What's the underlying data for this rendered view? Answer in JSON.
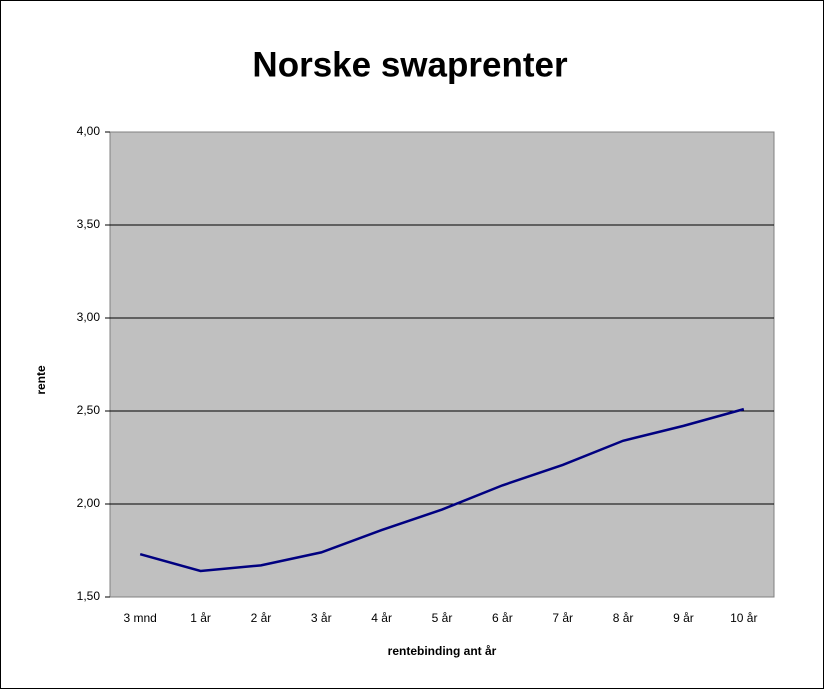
{
  "chart_data": {
    "type": "line",
    "title": "Norske swaprenter",
    "x_label": "rentebinding ant år",
    "y_label": "rente",
    "categories": [
      "3 mnd",
      "1 år",
      "2 år",
      "3 år",
      "4 år",
      "5 år",
      "6 år",
      "7 år",
      "8 år",
      "9 år",
      "10 år"
    ],
    "values": [
      1.73,
      1.64,
      1.67,
      1.74,
      1.86,
      1.97,
      2.1,
      2.21,
      2.34,
      2.42,
      2.51
    ],
    "color": "#000080",
    "ylim": [
      1.5,
      4.0
    ],
    "yticks": [
      {
        "value": 1.5,
        "label": "1,50"
      },
      {
        "value": 2.0,
        "label": "2,00"
      },
      {
        "value": 2.5,
        "label": "2,50"
      },
      {
        "value": 3.0,
        "label": "3,00"
      },
      {
        "value": 3.5,
        "label": "3,50"
      },
      {
        "value": 4.0,
        "label": "4,00"
      }
    ],
    "grid": true
  }
}
